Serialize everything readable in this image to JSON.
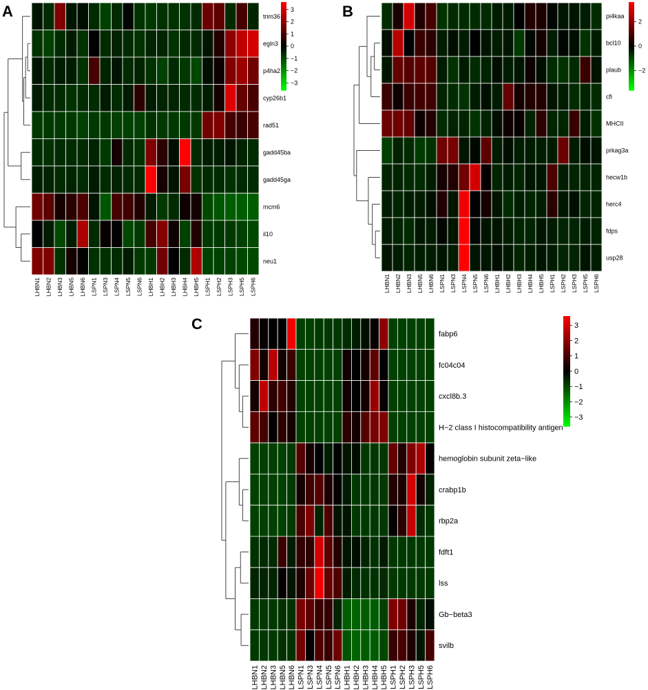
{
  "chart_data": [
    {
      "type": "heatmap",
      "panel_label": "A",
      "rows": [
        "trim36",
        "egln3",
        "p4ha2",
        "cyp26b1",
        "rad51",
        "gadd45ba",
        "gadd45ga",
        "mcm6",
        "il10",
        "neu1"
      ],
      "columns": [
        "LHBN1",
        "LHBN2",
        "LHBN3",
        "LHBN5",
        "LHBN6",
        "LSPN1",
        "LSPN3",
        "LSPN4",
        "LSPN5",
        "LSPN6",
        "LHBH1",
        "LHBH2",
        "LHBH3",
        "LHBH4",
        "LHBH5",
        "LSPH1",
        "LSPH2",
        "LSPH3",
        "LSPH5",
        "LSPH6"
      ],
      "values": [
        [
          -0.3,
          -0.6,
          1.8,
          -0.3,
          -0.2,
          -0.6,
          -0.9,
          -0.6,
          -0.1,
          -0.7,
          -0.8,
          -0.7,
          -0.7,
          -0.7,
          -0.6,
          1.5,
          1.3,
          -0.6,
          1.0,
          -0.5
        ],
        [
          -0.7,
          -0.9,
          -0.6,
          -0.4,
          -0.7,
          0.0,
          -0.6,
          -0.5,
          -0.6,
          -0.7,
          -0.5,
          -0.5,
          -0.7,
          -0.6,
          -0.6,
          -0.3,
          0.5,
          2.0,
          2.7,
          3.0
        ],
        [
          -0.3,
          -0.6,
          -0.4,
          -0.4,
          -0.7,
          1.0,
          -0.5,
          -0.3,
          -0.6,
          -0.5,
          -0.7,
          -0.9,
          -0.6,
          -0.8,
          -1.0,
          -0.2,
          0.2,
          1.8,
          2.2,
          1.6
        ],
        [
          -0.4,
          -0.6,
          -0.6,
          -0.7,
          -0.6,
          -0.6,
          -0.4,
          -0.6,
          -0.4,
          0.6,
          -0.4,
          -0.5,
          -0.5,
          -0.6,
          -0.6,
          -0.4,
          0.3,
          3.1,
          1.4,
          1.0
        ],
        [
          -0.8,
          -0.8,
          -0.8,
          -0.8,
          -0.9,
          -0.8,
          -0.8,
          -0.9,
          -0.9,
          -0.9,
          -0.7,
          -0.8,
          -0.8,
          -0.8,
          -0.8,
          1.6,
          1.8,
          1.0,
          0.8,
          1.0
        ],
        [
          -0.6,
          -0.7,
          -0.6,
          -0.6,
          -0.6,
          -0.5,
          -0.8,
          0.3,
          -0.6,
          -0.7,
          1.8,
          0.6,
          -0.2,
          3.6,
          -0.6,
          -0.4,
          -0.4,
          -0.3,
          -0.5,
          -0.6
        ],
        [
          -0.4,
          -0.5,
          -0.6,
          -0.5,
          -0.6,
          -0.4,
          -0.6,
          -0.5,
          -0.6,
          -0.6,
          3.6,
          0.3,
          -0.3,
          1.7,
          -0.7,
          -0.6,
          -0.6,
          -0.7,
          -0.6,
          -0.6
        ],
        [
          1.6,
          1.3,
          0.3,
          0.6,
          1.1,
          -0.3,
          -1.2,
          1.0,
          0.9,
          0.5,
          -0.4,
          -0.8,
          -0.6,
          0.2,
          0.3,
          -1.0,
          -1.2,
          -1.3,
          -1.3,
          -1.3
        ],
        [
          0.0,
          -0.4,
          -1.0,
          -0.4,
          2.4,
          -0.6,
          0.1,
          0.0,
          -1.0,
          -0.8,
          1.0,
          1.9,
          0.2,
          -0.9,
          0.5,
          -0.8,
          -0.8,
          -0.8,
          -0.9,
          -1.0
        ],
        [
          1.8,
          1.8,
          -0.7,
          0.3,
          0.0,
          -0.7,
          -0.7,
          -0.6,
          -0.4,
          -0.8,
          -0.8,
          1.6,
          0.0,
          -0.6,
          2.5,
          -0.9,
          -0.9,
          -0.9,
          -1.0,
          -1.0
        ]
      ],
      "colorbar": {
        "ticks": [
          3,
          2,
          1,
          0,
          -1,
          -2,
          -3
        ],
        "range": [
          -3.6,
          3.6
        ]
      },
      "colors": {
        "low": "#00ff00",
        "mid": "#000000",
        "high": "#ff0000"
      }
    },
    {
      "type": "heatmap",
      "panel_label": "B",
      "rows": [
        "pi4kaa",
        "bcl10",
        "plaub",
        "cfi",
        "MHCII",
        "prkag3a",
        "hecw1b",
        "herc4",
        "fdps",
        "usp28"
      ],
      "columns": [
        "LHBN1",
        "LHBN2",
        "LHBN3",
        "LHBN5",
        "LHBN6",
        "LSPN1",
        "LSPN3",
        "LSPN4",
        "LSPN5",
        "LSPN6",
        "LHBH1",
        "LHBH2",
        "LHBH3",
        "LHBH4",
        "LHBH5",
        "LSPH1",
        "LSPH2",
        "LSPH3",
        "LSPH5",
        "LSPH6"
      ],
      "values": [
        [
          -0.6,
          0.4,
          3.0,
          0.5,
          1.0,
          -0.7,
          -0.6,
          -0.6,
          -0.6,
          -0.6,
          -0.4,
          -0.4,
          0.0,
          0.5,
          0.4,
          -0.1,
          -0.3,
          -0.3,
          -0.4,
          -0.6
        ],
        [
          -0.2,
          2.6,
          0.0,
          0.8,
          0.6,
          -0.4,
          -0.2,
          -0.4,
          0.0,
          -0.3,
          -0.4,
          -0.3,
          -0.8,
          -0.1,
          0.3,
          -0.4,
          -0.1,
          -0.2,
          -0.7,
          -0.4
        ],
        [
          -0.3,
          1.4,
          1.2,
          1.3,
          1.2,
          -0.4,
          -0.7,
          -0.4,
          -0.6,
          -0.5,
          -0.2,
          -0.4,
          -0.3,
          0.2,
          -0.2,
          -0.6,
          -0.7,
          -0.6,
          0.8,
          -0.3
        ],
        [
          0.8,
          0.2,
          0.8,
          0.9,
          0.9,
          -0.5,
          -0.6,
          -0.7,
          -0.4,
          -0.2,
          -0.4,
          1.4,
          0.3,
          0.5,
          0.5,
          -0.3,
          -0.4,
          -0.6,
          -0.5,
          -0.6
        ],
        [
          1.5,
          1.6,
          1.4,
          0.2,
          0.5,
          -0.6,
          -0.5,
          -0.5,
          -0.7,
          -0.5,
          -0.2,
          0.2,
          0.1,
          -0.5,
          0.6,
          -0.5,
          -0.5,
          0.8,
          -0.4,
          -0.7
        ],
        [
          -0.9,
          -0.5,
          -0.6,
          -0.8,
          -0.7,
          1.6,
          1.7,
          -0.3,
          -0.1,
          1.3,
          -0.4,
          -0.2,
          -0.4,
          -0.4,
          -0.4,
          -0.4,
          1.5,
          -0.4,
          -0.2,
          -0.3
        ],
        [
          -0.5,
          -0.5,
          -0.6,
          -0.6,
          -0.4,
          0.3,
          0.5,
          1.6,
          3.0,
          0.1,
          -0.5,
          -0.4,
          -0.5,
          -0.3,
          -0.3,
          1.1,
          -0.4,
          -0.5,
          -0.5,
          -0.5
        ],
        [
          -0.4,
          -0.5,
          -0.4,
          -0.4,
          -0.2,
          0.5,
          -0.3,
          3.4,
          0.0,
          0.3,
          -0.3,
          -0.6,
          -0.4,
          -0.5,
          -0.4,
          0.6,
          -0.3,
          -0.2,
          -0.5,
          -0.5
        ],
        [
          -0.4,
          -0.5,
          -0.6,
          -0.3,
          -0.4,
          -0.1,
          -0.3,
          3.6,
          -0.1,
          -0.3,
          -0.3,
          -0.4,
          -0.5,
          -0.5,
          -0.3,
          -0.4,
          -0.5,
          -0.5,
          -0.4,
          -0.5
        ],
        [
          -0.3,
          -0.4,
          -0.5,
          -0.4,
          -0.4,
          -0.3,
          -0.4,
          3.6,
          -0.3,
          -0.3,
          -0.2,
          -0.3,
          -0.5,
          -0.4,
          -0.3,
          -0.4,
          -0.5,
          -0.5,
          -0.3,
          -0.4
        ]
      ],
      "colorbar": {
        "ticks": [
          2,
          0,
          -2
        ],
        "range": [
          -3.6,
          3.6
        ]
      },
      "colors": {
        "low": "#00ff00",
        "mid": "#000000",
        "high": "#ff0000"
      }
    },
    {
      "type": "heatmap",
      "panel_label": "C",
      "rows": [
        "fabp6",
        "fc04c04",
        "cxcl8b.3",
        "H−2 class I histocompatibility antigen",
        "hemoglobin subunit zeta−like",
        "crabp1b",
        "rbp2a",
        "fdft1",
        "lss",
        "Gb−beta3",
        "svilb"
      ],
      "columns": [
        "LHBN1",
        "LHBN2",
        "LHBN3",
        "LHBN5",
        "LHBN6",
        "LSPN1",
        "LSPN3",
        "LSPN4",
        "LSPN5",
        "LSPN6",
        "LHBH1",
        "LHBH2",
        "LHBH3",
        "LHBH4",
        "LHBH5",
        "LSPH1",
        "LSPH2",
        "LSPH3",
        "LSPH5",
        "LSPH6"
      ],
      "values": [
        [
          0.5,
          0.1,
          0.0,
          0.0,
          3.4,
          -0.9,
          -0.9,
          -0.8,
          -0.8,
          -0.8,
          -0.6,
          -0.4,
          -0.2,
          0.1,
          2.0,
          -0.9,
          -0.9,
          -0.9,
          -0.9,
          -0.9
        ],
        [
          1.8,
          0.3,
          2.6,
          0.3,
          0.8,
          -0.9,
          -0.9,
          -0.9,
          -0.9,
          -0.9,
          0.2,
          0.0,
          0.3,
          1.3,
          0.0,
          -0.9,
          -0.9,
          -0.9,
          -0.9,
          -0.9
        ],
        [
          0.3,
          2.7,
          0.6,
          0.9,
          0.5,
          -0.9,
          -0.9,
          -0.9,
          -0.9,
          -0.9,
          0.2,
          0.0,
          0.3,
          2.1,
          0.1,
          -0.9,
          -0.9,
          -0.9,
          -0.9,
          -0.9
        ],
        [
          1.3,
          1.0,
          0.0,
          0.6,
          0.3,
          -0.9,
          -0.9,
          -0.9,
          -0.9,
          -0.9,
          0.6,
          0.3,
          1.2,
          1.7,
          1.8,
          -0.9,
          -0.9,
          -0.9,
          -0.9,
          -0.9
        ],
        [
          -0.9,
          -0.9,
          -0.9,
          -0.9,
          -0.8,
          1.2,
          0.3,
          0.0,
          -0.4,
          0.0,
          -0.3,
          -0.2,
          -0.8,
          -0.8,
          -0.8,
          1.4,
          0.5,
          1.8,
          2.4,
          0.1
        ],
        [
          -0.9,
          -0.9,
          -0.9,
          -0.9,
          -0.8,
          0.3,
          0.9,
          1.2,
          0.4,
          0.0,
          -0.4,
          -0.8,
          -0.8,
          -0.8,
          -0.8,
          0.5,
          0.4,
          3.0,
          0.3,
          -0.5
        ],
        [
          -0.9,
          -0.9,
          -0.9,
          -0.9,
          -0.8,
          1.0,
          1.8,
          -0.5,
          1.1,
          -0.3,
          -0.3,
          -0.8,
          -0.8,
          -0.8,
          -0.8,
          0.1,
          0.6,
          2.8,
          -0.6,
          -0.8
        ],
        [
          -0.7,
          -0.6,
          -0.6,
          0.8,
          -0.4,
          0.7,
          0.6,
          3.0,
          1.3,
          0.5,
          -0.3,
          -0.2,
          -0.5,
          -0.7,
          -0.4,
          -0.8,
          -0.8,
          -0.8,
          -0.8,
          -0.8
        ],
        [
          -0.5,
          -0.5,
          -0.5,
          0.1,
          -0.3,
          0.4,
          1.5,
          3.4,
          1.4,
          1.1,
          -0.4,
          -0.6,
          -0.7,
          -0.7,
          -0.6,
          -0.8,
          -0.8,
          -0.8,
          -0.8,
          -0.8
        ],
        [
          -0.8,
          -0.8,
          -0.8,
          -0.7,
          -0.7,
          1.7,
          1.3,
          0.8,
          0.7,
          -0.5,
          -1.3,
          -1.4,
          -1.3,
          -1.3,
          -0.9,
          1.8,
          1.6,
          0.4,
          -0.5,
          -0.2
        ],
        [
          -0.8,
          -0.8,
          -0.8,
          -0.7,
          -0.7,
          1.6,
          0.0,
          1.1,
          0.8,
          1.6,
          -1.2,
          -1.4,
          -1.3,
          -1.3,
          -1.0,
          0.8,
          1.0,
          0.4,
          -0.3,
          1.0
        ]
      ],
      "colorbar": {
        "ticks": [
          3,
          2,
          1,
          0,
          -1,
          -2,
          -3
        ],
        "range": [
          -3.6,
          3.6
        ]
      },
      "colors": {
        "low": "#00ff00",
        "mid": "#000000",
        "high": "#ff0000"
      }
    }
  ]
}
